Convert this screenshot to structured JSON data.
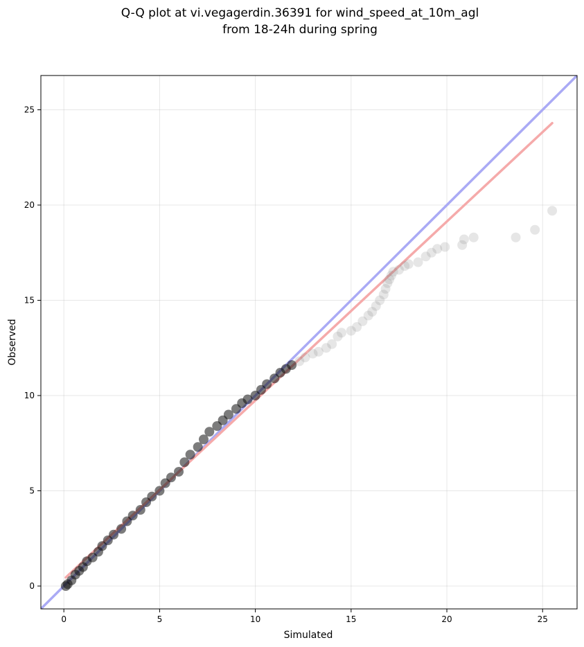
{
  "chart_data": {
    "type": "scatter",
    "title_lines": [
      "Q-Q plot at vi.vegagerdin.36391 for wind_speed_at_10m_agl",
      "from 18-24h during spring"
    ],
    "xlabel": "Simulated",
    "ylabel": "Observed",
    "xlim": [
      -1.2,
      26.8
    ],
    "ylim": [
      -1.2,
      26.8
    ],
    "xticks": [
      "0",
      "5",
      "10",
      "15",
      "20",
      "25"
    ],
    "yticks": [
      "0",
      "5",
      "10",
      "15",
      "20",
      "25"
    ],
    "grid": true,
    "legend": "none",
    "colors": {
      "identity_line": "#aaaaf5",
      "fit_line": "#f5aaaa",
      "points": "#808080",
      "dense_points": "#111111"
    },
    "identity_line": {
      "x": [
        -1.2,
        26.8
      ],
      "y": [
        -1.2,
        26.8
      ]
    },
    "fit_line": {
      "x": [
        0.1,
        25.5
      ],
      "y": [
        0.45,
        24.3
      ]
    },
    "quantiles": {
      "x": [
        0.1,
        0.2,
        0.4,
        0.6,
        0.8,
        1.0,
        1.2,
        1.5,
        1.8,
        2.0,
        2.3,
        2.6,
        3.0,
        3.3,
        3.6,
        4.0,
        4.3,
        4.6,
        5.0,
        5.3,
        5.6,
        6.0,
        6.3,
        6.6,
        7.0,
        7.3,
        7.6,
        8.0,
        8.3,
        8.6,
        9.0,
        9.3,
        9.6,
        10.0,
        10.3,
        10.6,
        11.0,
        11.3,
        11.6,
        11.9,
        12.3,
        12.6,
        13.0,
        13.3,
        13.7,
        14.0,
        14.3,
        14.5,
        15.0,
        15.3,
        15.6,
        15.9,
        16.1,
        16.3,
        16.5,
        16.7,
        16.8,
        16.9,
        17.0,
        17.1,
        17.2,
        17.5,
        17.8,
        18.0,
        18.5,
        18.9,
        19.2,
        19.5,
        19.9,
        20.8,
        20.9,
        21.4,
        23.6,
        24.6,
        25.5
      ],
      "y": [
        0.0,
        0.1,
        0.3,
        0.6,
        0.8,
        1.0,
        1.3,
        1.5,
        1.8,
        2.1,
        2.4,
        2.7,
        3.0,
        3.4,
        3.7,
        4.0,
        4.4,
        4.7,
        5.0,
        5.4,
        5.7,
        6.0,
        6.5,
        6.9,
        7.3,
        7.7,
        8.1,
        8.4,
        8.7,
        9.0,
        9.3,
        9.6,
        9.8,
        10.0,
        10.3,
        10.6,
        10.9,
        11.2,
        11.4,
        11.6,
        11.8,
        12.0,
        12.2,
        12.3,
        12.5,
        12.7,
        13.1,
        13.3,
        13.4,
        13.6,
        13.9,
        14.2,
        14.4,
        14.7,
        15.0,
        15.3,
        15.6,
        15.9,
        16.1,
        16.3,
        16.5,
        16.6,
        16.8,
        16.9,
        17.0,
        17.3,
        17.5,
        17.7,
        17.8,
        17.9,
        18.2,
        18.3,
        18.3,
        18.7,
        19.7
      ]
    }
  }
}
